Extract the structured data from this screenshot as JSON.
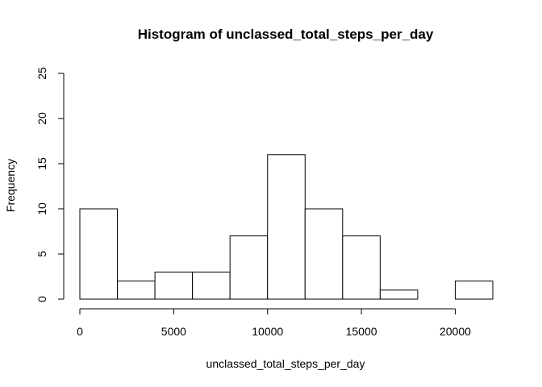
{
  "chart_data": {
    "type": "bar",
    "title": "Histogram of unclassed_total_steps_per_day",
    "xlabel": "unclassed_total_steps_per_day",
    "ylabel": "Frequency",
    "bin_width": 2000,
    "bins": [
      {
        "start": 0,
        "end": 2000,
        "count": 10
      },
      {
        "start": 2000,
        "end": 4000,
        "count": 2
      },
      {
        "start": 4000,
        "end": 6000,
        "count": 3
      },
      {
        "start": 6000,
        "end": 8000,
        "count": 3
      },
      {
        "start": 8000,
        "end": 10000,
        "count": 7
      },
      {
        "start": 10000,
        "end": 12000,
        "count": 16
      },
      {
        "start": 12000,
        "end": 14000,
        "count": 10
      },
      {
        "start": 14000,
        "end": 16000,
        "count": 7
      },
      {
        "start": 16000,
        "end": 18000,
        "count": 1
      },
      {
        "start": 18000,
        "end": 20000,
        "count": 0
      },
      {
        "start": 20000,
        "end": 22000,
        "count": 2
      }
    ],
    "xlim": [
      0,
      22000
    ],
    "ylim": [
      0,
      25
    ],
    "x_ticks": [
      "0",
      "5000",
      "10000",
      "15000",
      "20000"
    ],
    "y_ticks": [
      "0",
      "5",
      "10",
      "15",
      "20",
      "25"
    ],
    "grid": false,
    "legend": "none",
    "colors": {
      "bar_fill": "#ffffff",
      "bar_stroke": "#000000",
      "axis": "#000000"
    }
  }
}
